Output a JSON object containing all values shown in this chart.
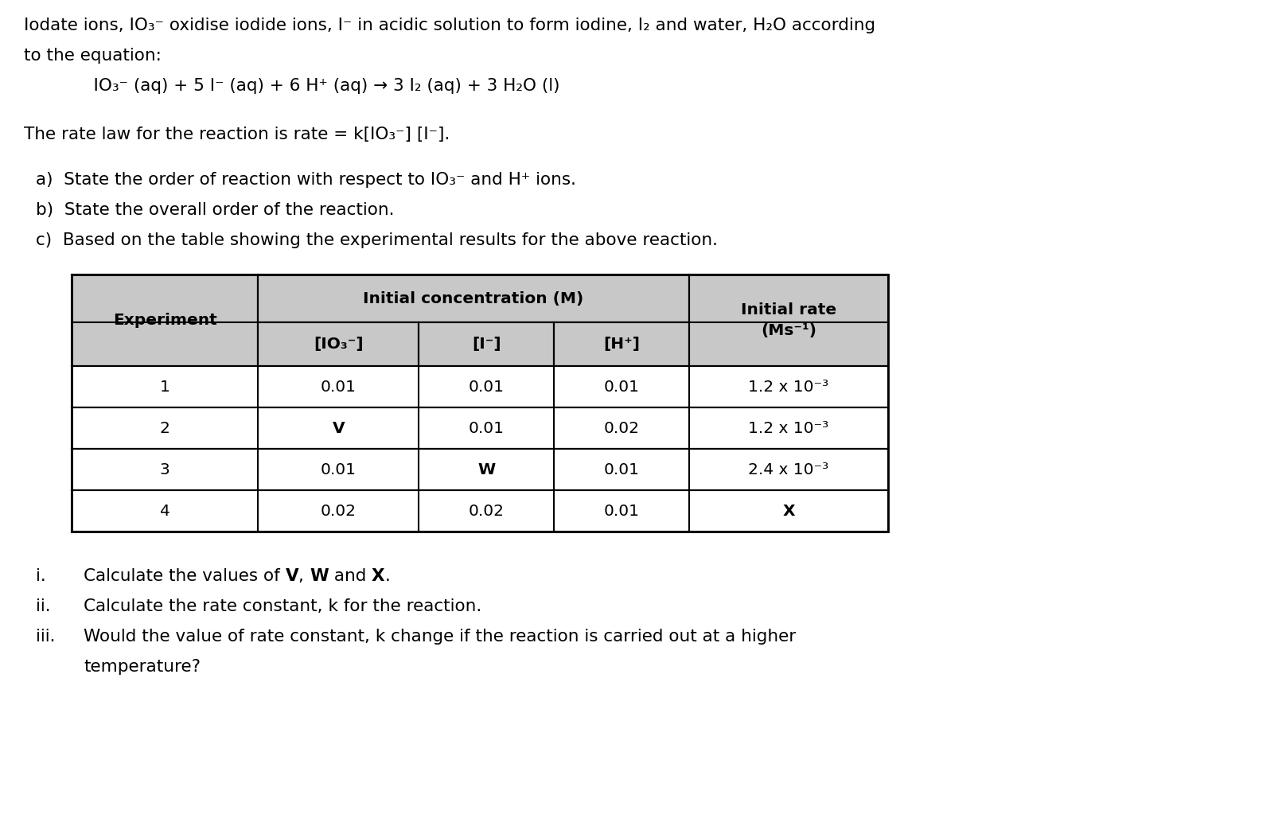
{
  "bg_color": "#ffffff",
  "text_color": "#000000",
  "header_bg": "#c8c8c8",
  "fig_width": 16.16,
  "fig_height": 10.43,
  "font_family": "DejaVu Sans",
  "main_font": 15.5,
  "table_font": 14.5,
  "table_rows": [
    [
      "1",
      "0.01",
      "0.01",
      "0.01",
      "1.2 x 10⁻³"
    ],
    [
      "2",
      "V",
      "0.01",
      "0.02",
      "1.2 x 10⁻³"
    ],
    [
      "3",
      "0.01",
      "W",
      "0.01",
      "2.4 x 10⁻³"
    ],
    [
      "4",
      "0.02",
      "0.02",
      "0.01",
      "X"
    ]
  ]
}
